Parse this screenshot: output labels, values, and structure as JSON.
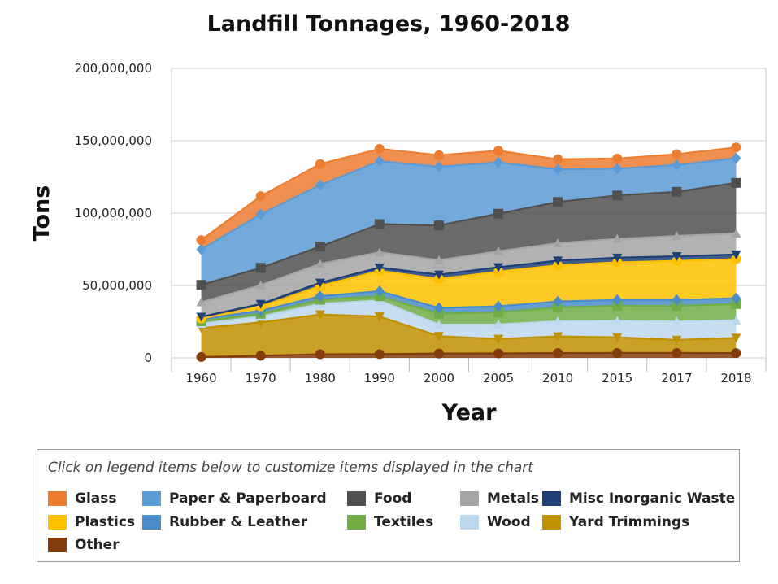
{
  "chart_data": {
    "type": "area",
    "stacked": true,
    "title": "Landfill Tonnages, 1960-2018",
    "xlabel": "Year",
    "ylabel": "Tons",
    "ylim": [
      0,
      200000000
    ],
    "y_ticks": [
      "0",
      "50,000,000",
      "100,000,000",
      "150,000,000",
      "200,000,000"
    ],
    "y_tick_values": [
      0,
      50000000,
      100000000,
      150000000,
      200000000
    ],
    "categories": [
      "1960",
      "1970",
      "1980",
      "1990",
      "2000",
      "2005",
      "2010",
      "2015",
      "2017",
      "2018"
    ],
    "grid": true,
    "legend_hint": "Click on legend items below to customize items displayed in the chart",
    "legend_position": "bottom",
    "series": [
      {
        "name": "Other",
        "color": "#843c0c",
        "marker": "circle",
        "values": [
          600000,
          1500000,
          2500000,
          2600000,
          3000000,
          3100000,
          3300000,
          3400000,
          3400000,
          3300000
        ]
      },
      {
        "name": "Yard Trimmings",
        "color": "#bf9000",
        "marker": "triangle-down",
        "values": [
          20000000,
          23000000,
          27500000,
          26000000,
          12000000,
          10000000,
          11500000,
          10800000,
          9000000,
          10500000
        ]
      },
      {
        "name": "Wood",
        "color": "#bdd7ee",
        "marker": "triangle-up",
        "values": [
          3000000,
          4000000,
          7300000,
          11000000,
          8000000,
          10000000,
          10500000,
          11400000,
          12700000,
          12100000
        ]
      },
      {
        "name": "Textiles",
        "color": "#70ad47",
        "marker": "square",
        "values": [
          1700000,
          2000000,
          2800000,
          3000000,
          7500000,
          8500000,
          9500000,
          10400000,
          10800000,
          11300000
        ]
      },
      {
        "name": "Rubber & Leather",
        "color": "#4a8cc8",
        "marker": "diamond",
        "values": [
          1500000,
          2000000,
          2500000,
          3500000,
          4000000,
          4000000,
          4200000,
          4000000,
          4100000,
          4000000
        ]
      },
      {
        "name": "Plastics",
        "color": "#ffc000",
        "marker": "circle",
        "values": [
          300000,
          3000000,
          7000000,
          14000000,
          20000000,
          24000000,
          25000000,
          26000000,
          27000000,
          27000000
        ]
      },
      {
        "name": "Misc Inorganic Waste",
        "color": "#1f3f77",
        "marker": "triangle-down",
        "values": [
          1300000,
          1700000,
          2300000,
          2300000,
          3000000,
          3000000,
          3200000,
          3200000,
          3200000,
          3200000
        ]
      },
      {
        "name": "Metals",
        "color": "#a5a5a5",
        "marker": "triangle-up",
        "values": [
          10000000,
          13000000,
          13000000,
          10500000,
          10000000,
          11000000,
          12000000,
          13000000,
          14000000,
          14500000
        ]
      },
      {
        "name": "Food",
        "color": "#505050",
        "marker": "square",
        "values": [
          12000000,
          12000000,
          12000000,
          19500000,
          24000000,
          26000000,
          28500000,
          30000000,
          30500000,
          35000000
        ]
      },
      {
        "name": "Paper & Paperboard",
        "color": "#5b9bd5",
        "marker": "diamond",
        "values": [
          24500000,
          37000000,
          42500000,
          43500000,
          40500000,
          35500000,
          22500000,
          18500000,
          18500000,
          17000000
        ]
      },
      {
        "name": "Glass",
        "color": "#ed7d31",
        "marker": "circle",
        "values": [
          6500000,
          12500000,
          14500000,
          8500000,
          8000000,
          8000000,
          7000000,
          7000000,
          7500000,
          7500000
        ]
      }
    ],
    "legend": [
      {
        "name": "Glass",
        "color": "#ed7d31"
      },
      {
        "name": "Paper & Paperboard",
        "color": "#5b9bd5"
      },
      {
        "name": "Food",
        "color": "#505050"
      },
      {
        "name": "Metals",
        "color": "#a5a5a5"
      },
      {
        "name": "Misc Inorganic Waste",
        "color": "#1f3f77"
      },
      {
        "name": "Plastics",
        "color": "#ffc000"
      },
      {
        "name": "Rubber & Leather",
        "color": "#4a8cc8"
      },
      {
        "name": "Textiles",
        "color": "#70ad47"
      },
      {
        "name": "Wood",
        "color": "#bdd7ee"
      },
      {
        "name": "Yard Trimmings",
        "color": "#bf9000"
      },
      {
        "name": "Other",
        "color": "#843c0c"
      }
    ]
  }
}
